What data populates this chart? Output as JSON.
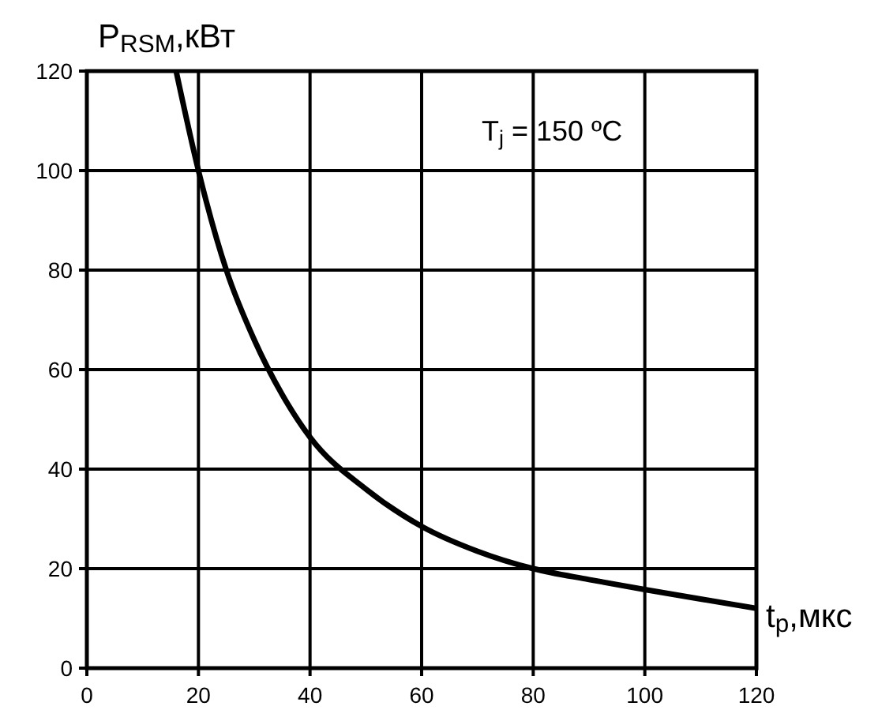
{
  "chart_data": {
    "type": "line",
    "ylabel": "P$_{RSM}$,кВт",
    "xlabel": "t$_{p}$,мкс",
    "annotations": [
      "T$_{j}$ = 150 ºC"
    ],
    "series": [
      {
        "color": "#000000",
        "x": [
          16,
          20,
          25,
          30,
          35,
          40,
          50,
          60,
          70,
          80,
          90,
          100,
          110,
          120
        ],
        "values": [
          120,
          100,
          80,
          66,
          55,
          46.4,
          36,
          28.5,
          23.5,
          20,
          17.8,
          15.8,
          13.9,
          12
        ]
      }
    ],
    "xlim": [
      0,
      120
    ],
    "ylim": [
      0,
      120
    ],
    "xticks": [
      0,
      20,
      40,
      60,
      80,
      100,
      120
    ],
    "yticks": [
      0,
      20,
      40,
      60,
      80,
      100,
      120
    ],
    "grid": true,
    "marker": "none",
    "line_style": "solid"
  }
}
